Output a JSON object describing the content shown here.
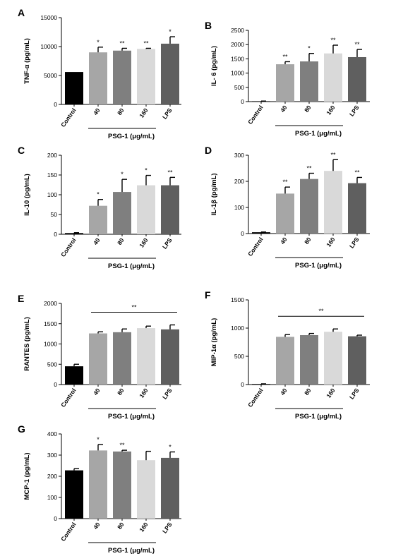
{
  "colors": {
    "Control": "#000000",
    "40": "#a6a6a6",
    "80": "#7f7f7f",
    "160": "#d9d9d9",
    "LPS": "#5f5f5f"
  },
  "chart_data": [
    {
      "panel": "A",
      "type": "bar",
      "categories": [
        "Control",
        "40",
        "80",
        "160",
        "LPS"
      ],
      "values": [
        5600,
        9000,
        9300,
        9600,
        10500
      ],
      "errors": [
        0,
        900,
        400,
        100,
        1200
      ],
      "significance": [
        "",
        "*",
        "**",
        "**",
        "*"
      ],
      "ylabel": "TNF-α (pg/mL)",
      "ylim": [
        0,
        15000
      ],
      "yticks": [
        "0",
        "5000",
        "10000",
        "15000"
      ],
      "group_label": "PSG-1 (μg/mL)"
    },
    {
      "panel": "B",
      "type": "bar",
      "categories": [
        "Control",
        "40",
        "80",
        "160",
        "LPS"
      ],
      "values": [
        15,
        1310,
        1410,
        1690,
        1560
      ],
      "errors": [
        5,
        90,
        280,
        290,
        270
      ],
      "significance": [
        "",
        "**",
        "*",
        "**",
        "**"
      ],
      "ylabel": "IL- 6 (pg/mL)",
      "ylim": [
        0,
        2500
      ],
      "yticks": [
        "0",
        "500",
        "1000",
        "1500",
        "2000",
        "2500"
      ],
      "group_label": "PSG-1 (μg/mL)"
    },
    {
      "panel": "C",
      "type": "bar",
      "categories": [
        "Control",
        "40",
        "80",
        "160",
        "LPS"
      ],
      "values": [
        3,
        72,
        107,
        124,
        124
      ],
      "errors": [
        1,
        16,
        32,
        25,
        20
      ],
      "significance": [
        "",
        "*",
        "*",
        "*",
        "**"
      ],
      "ylabel": "IL-10 (pg/mL)",
      "ylim": [
        0,
        200
      ],
      "yticks": [
        "0",
        "50",
        "100",
        "150",
        "200"
      ],
      "group_label": "PSG-1 (μg/mL)"
    },
    {
      "panel": "D",
      "type": "bar",
      "categories": [
        "Control",
        "40",
        "80",
        "160",
        "LPS"
      ],
      "values": [
        5,
        153,
        209,
        240,
        193
      ],
      "errors": [
        1,
        25,
        22,
        43,
        22
      ],
      "significance": [
        "",
        "**",
        "**",
        "**",
        "**"
      ],
      "ylabel": "IL-1β (pg/mL)",
      "ylim": [
        0,
        300
      ],
      "yticks": [
        "0",
        "100",
        "200",
        "300"
      ],
      "group_label": "PSG-1 (μg/mL)"
    },
    {
      "panel": "E",
      "type": "bar",
      "categories": [
        "Control",
        "40",
        "80",
        "160",
        "LPS"
      ],
      "values": [
        450,
        1260,
        1290,
        1390,
        1360
      ],
      "errors": [
        50,
        40,
        80,
        50,
        110
      ],
      "significance": [
        "",
        "",
        "",
        "",
        ""
      ],
      "bracket_sig": "**",
      "ylabel": "RANTES (pg/mL)",
      "ylim": [
        0,
        2000
      ],
      "yticks": [
        "0",
        "500",
        "1000",
        "1500",
        "2000"
      ],
      "group_label": "PSG-1 (μg/mL)"
    },
    {
      "panel": "F",
      "type": "bar",
      "categories": [
        "Control",
        "40",
        "80",
        "160",
        "LPS"
      ],
      "values": [
        10,
        845,
        875,
        935,
        855
      ],
      "errors": [
        3,
        40,
        30,
        50,
        20
      ],
      "significance": [
        "",
        "",
        "",
        "",
        ""
      ],
      "bracket_sig": "**",
      "ylabel": "MIP-1α (pg/mL)",
      "ylim": [
        0,
        1500
      ],
      "yticks": [
        "0",
        "500",
        "1000",
        "1500"
      ],
      "group_label": "PSG-1 (μg/mL)"
    },
    {
      "panel": "G",
      "type": "bar",
      "categories": [
        "Control",
        "40",
        "80",
        "160",
        "LPS"
      ],
      "values": [
        228,
        322,
        317,
        276,
        287
      ],
      "errors": [
        8,
        28,
        6,
        42,
        28
      ],
      "significance": [
        "",
        "*",
        "**",
        "",
        "*"
      ],
      "ylabel": "MCP-1 (pg/mL)",
      "ylim": [
        0,
        400
      ],
      "yticks": [
        "0",
        "100",
        "200",
        "300",
        "400"
      ],
      "group_label": "PSG-1 (μg/mL)"
    }
  ]
}
